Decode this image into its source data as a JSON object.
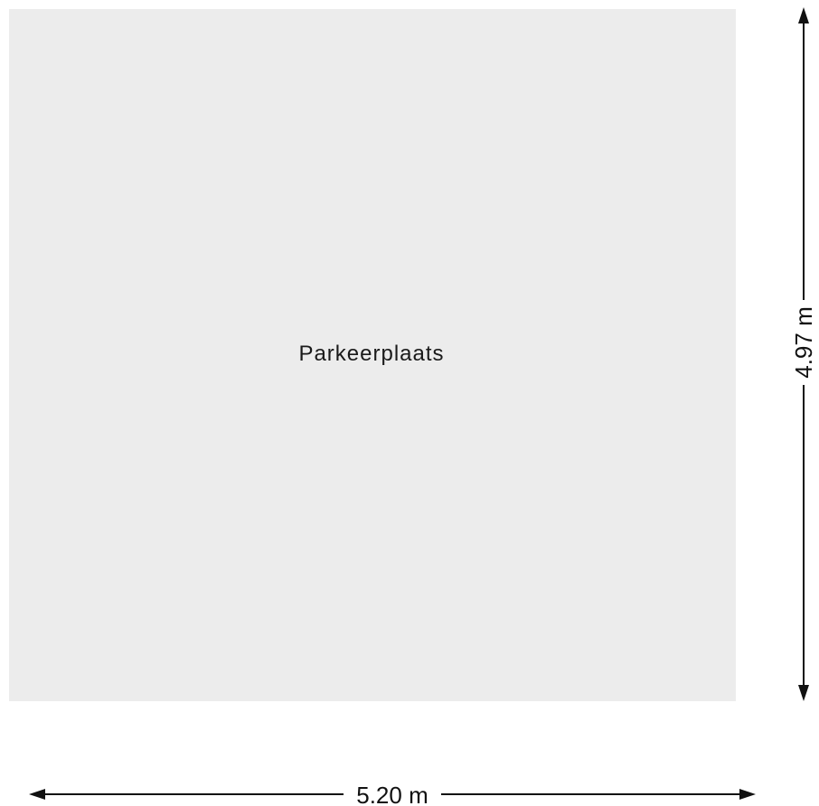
{
  "floorplan": {
    "room": {
      "label": "Parkeerplaats",
      "fill_color": "#ececec"
    },
    "dimensions": {
      "width_label": "5.20 m",
      "height_label": "4.97 m",
      "line_color": "#111111"
    }
  }
}
